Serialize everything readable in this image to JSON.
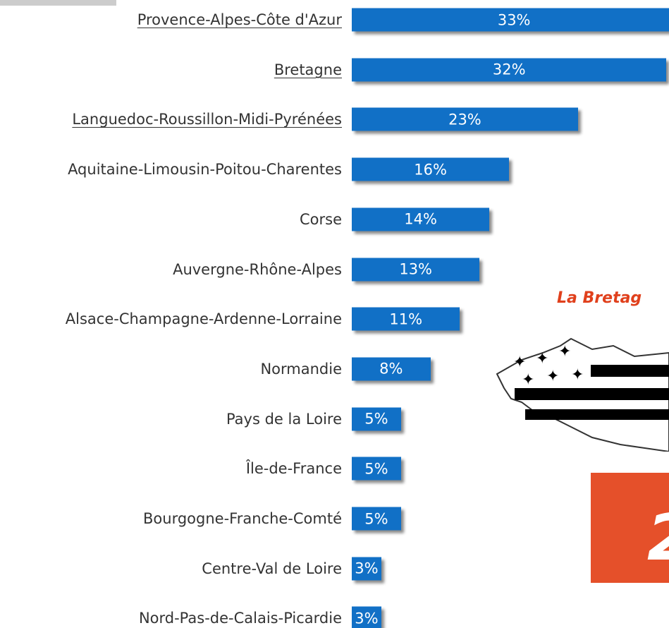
{
  "chart_data": {
    "type": "bar",
    "orientation": "horizontal",
    "color": "#1170c6",
    "categories": [
      "Provence-Alpes-Côte d'Azur",
      "Bretagne",
      "Languedoc-Roussillon-Midi-Pyrénées",
      "Aquitaine-Limousin-Poitou-Charentes",
      "Corse",
      "Auvergne-Rhône-Alpes",
      "Alsace-Champagne-Ardenne-Lorraine",
      "Normandie",
      "Pays de la Loire",
      "Île-de-France",
      "Bourgogne-Franche-Comté",
      "Centre-Val de Loire",
      "Nord-Pas-de-Calais-Picardie"
    ],
    "values": [
      33,
      32,
      23,
      16,
      14,
      13,
      11,
      8,
      5,
      5,
      5,
      3,
      3
    ],
    "value_labels": [
      "33%",
      "32%",
      "23%",
      "16%",
      "14%",
      "13%",
      "11%",
      "8%",
      "5%",
      "5%",
      "5%",
      "3%",
      "3%"
    ],
    "underlined_count": 3,
    "annotations": [
      "La Bretag",
      "2"
    ]
  }
}
